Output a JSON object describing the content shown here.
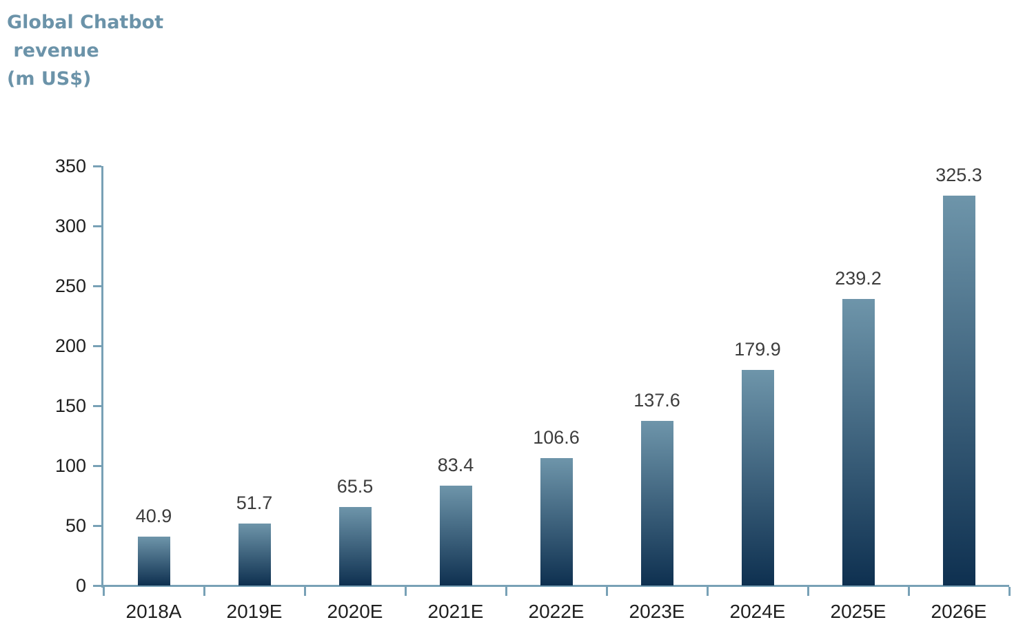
{
  "title": {
    "text": "Global Chatbot\n revenue\n(m US$)",
    "color": "#6b93a9"
  },
  "chart_data": {
    "type": "bar",
    "title": "Global Chatbot revenue (m US$)",
    "categories": [
      "2018A",
      "2019E",
      "2020E",
      "2021E",
      "2022E",
      "2023E",
      "2024E",
      "2025E",
      "2026E"
    ],
    "values": [
      40.9,
      51.7,
      65.5,
      83.4,
      106.6,
      137.6,
      179.9,
      239.2,
      325.3
    ],
    "data_labels": [
      "40.9",
      "51.7",
      "65.5",
      "83.4",
      "106.6",
      "137.6",
      "179.9",
      "239.2",
      "325.3"
    ],
    "xlabel": "",
    "ylabel": "",
    "ylim": [
      0,
      350
    ],
    "yticks": [
      0,
      50,
      100,
      150,
      200,
      250,
      300,
      350
    ],
    "grid": false,
    "legend": false,
    "colors": {
      "bar_gradient_top": "#6e95aa",
      "bar_gradient_bottom": "#0e3050",
      "axis": "#78a1b6",
      "axis_tick_label": "#1f1f1f",
      "data_label": "#3d3d3d",
      "title": "#6b93a9",
      "background": "#ffffff"
    }
  }
}
